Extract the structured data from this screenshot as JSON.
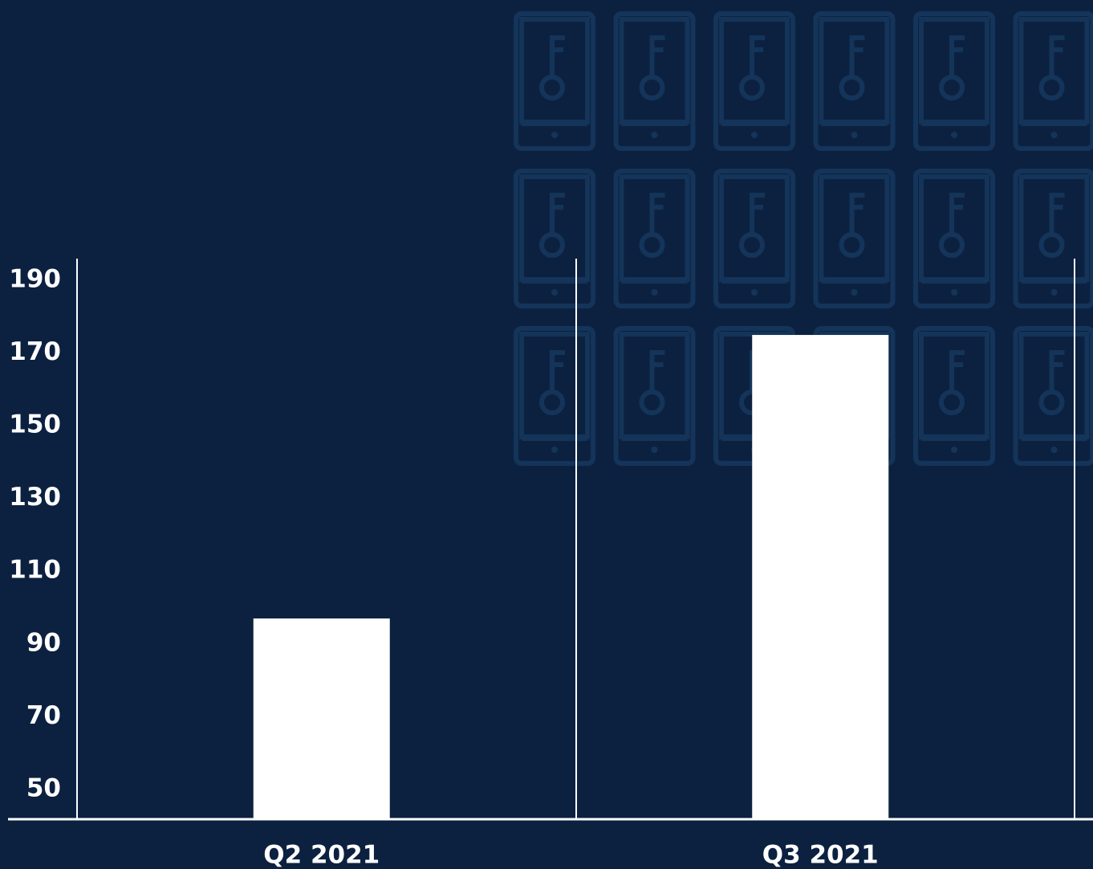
{
  "chart_data": {
    "type": "bar",
    "categories": [
      "Q2 2021",
      "Q3 2021"
    ],
    "values": [
      97,
      175
    ],
    "color": "#ffffff",
    "ylim": [
      42,
      196
    ],
    "yticks": [
      50,
      70,
      90,
      110,
      130,
      150,
      170,
      190
    ],
    "grid": false
  }
}
